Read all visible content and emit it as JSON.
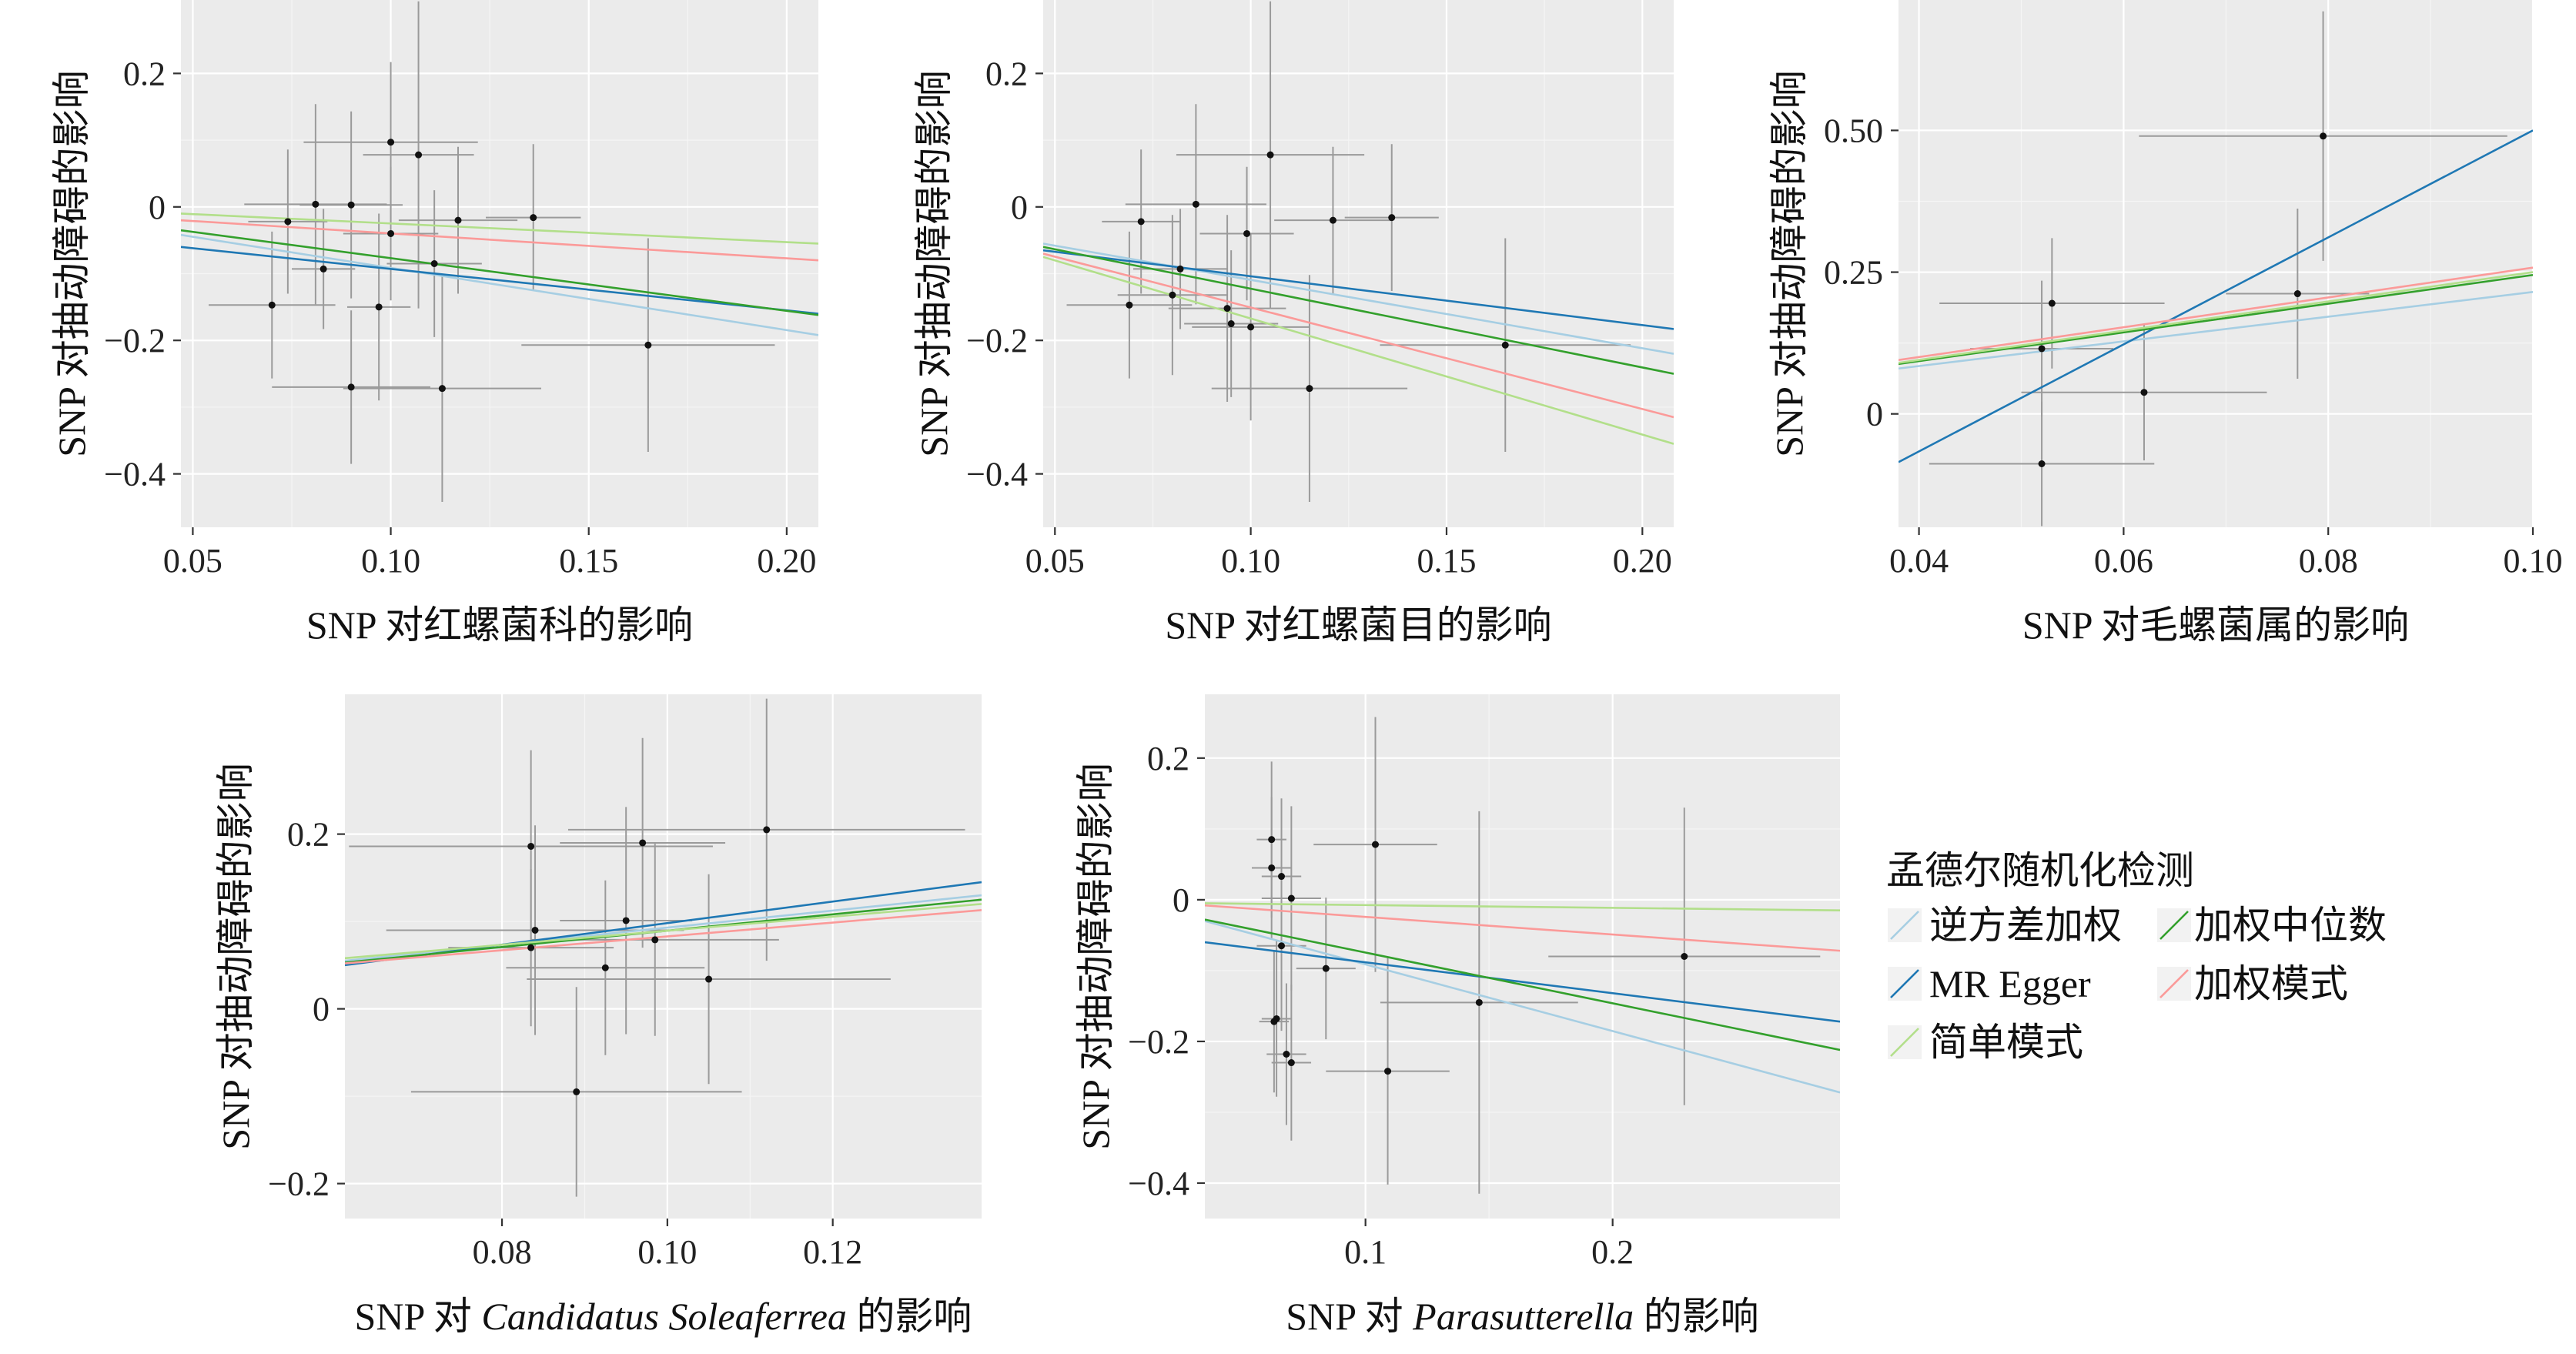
{
  "figure": {
    "legend": {
      "title": "孟德尔随机化检测",
      "items": [
        {
          "key": "ivw",
          "label": "逆方差加权",
          "color": "#a6cee3"
        },
        {
          "key": "wmed",
          "label": "加权中位数",
          "color": "#33a02c"
        },
        {
          "key": "egger",
          "label": "MR Egger",
          "color": "#1f78b4"
        },
        {
          "key": "wmode",
          "label": "加权模式",
          "color": "#fb9a99"
        },
        {
          "key": "smode",
          "label": "简单模式",
          "color": "#b2df8a"
        }
      ]
    }
  },
  "chart_data": [
    {
      "type": "scatter",
      "xlabel": [
        {
          "t": "SNP 对红螺菌科的影响"
        }
      ],
      "ylabel": "SNP 对抽动障碍的影响",
      "xlim": [
        0.047,
        0.208
      ],
      "ylim": [
        -0.48,
        0.31
      ],
      "xticks": [
        {
          "v": 0.05,
          "label": "0.05"
        },
        {
          "v": 0.1,
          "label": "0.10"
        },
        {
          "v": 0.15,
          "label": "0.15"
        },
        {
          "v": 0.2,
          "label": "0.20"
        }
      ],
      "yticks": [
        {
          "v": 0.2,
          "label": "0.2"
        },
        {
          "v": 0,
          "label": "0"
        },
        {
          "v": -0.2,
          "label": "−0.2"
        },
        {
          "v": -0.4,
          "label": "−0.4"
        }
      ],
      "points": [
        {
          "x": 0.07,
          "y": -0.147,
          "xe": 0.016,
          "ye": 0.11
        },
        {
          "x": 0.074,
          "y": -0.022,
          "xe": 0.01,
          "ye": 0.108
        },
        {
          "x": 0.081,
          "y": 0.004,
          "xe": 0.018,
          "ye": 0.15
        },
        {
          "x": 0.083,
          "y": -0.093,
          "xe": 0.008,
          "ye": 0.09
        },
        {
          "x": 0.09,
          "y": 0.003,
          "xe": 0.013,
          "ye": 0.14
        },
        {
          "x": 0.09,
          "y": -0.27,
          "xe": 0.02,
          "ye": 0.115
        },
        {
          "x": 0.097,
          "y": -0.15,
          "xe": 0.008,
          "ye": 0.14
        },
        {
          "x": 0.1,
          "y": 0.097,
          "xe": 0.022,
          "ye": 0.12
        },
        {
          "x": 0.1,
          "y": -0.04,
          "xe": 0.012,
          "ye": 0.1
        },
        {
          "x": 0.107,
          "y": 0.078,
          "xe": 0.014,
          "ye": 0.23
        },
        {
          "x": 0.111,
          "y": -0.085,
          "xe": 0.012,
          "ye": 0.11
        },
        {
          "x": 0.113,
          "y": -0.272,
          "xe": 0.025,
          "ye": 0.17
        },
        {
          "x": 0.117,
          "y": -0.02,
          "xe": 0.015,
          "ye": 0.11
        },
        {
          "x": 0.136,
          "y": -0.016,
          "xe": 0.012,
          "ye": 0.11
        },
        {
          "x": 0.165,
          "y": -0.207,
          "xe": 0.032,
          "ye": 0.16
        }
      ],
      "lines": [
        {
          "key": "ivw",
          "y0": -0.042,
          "y1": -0.192
        },
        {
          "key": "egger",
          "y0": -0.06,
          "y1": -0.16
        },
        {
          "key": "wmed",
          "y0": -0.035,
          "y1": -0.162
        },
        {
          "key": "wmode",
          "y0": -0.02,
          "y1": -0.08
        },
        {
          "key": "smode",
          "y0": -0.01,
          "y1": -0.055
        }
      ]
    },
    {
      "type": "scatter",
      "xlabel": [
        {
          "t": "SNP 对红螺菌目的影响"
        }
      ],
      "ylabel": "SNP 对抽动障碍的影响",
      "xlim": [
        0.047,
        0.208
      ],
      "ylim": [
        -0.48,
        0.31
      ],
      "xticks": [
        {
          "v": 0.05,
          "label": "0.05"
        },
        {
          "v": 0.1,
          "label": "0.10"
        },
        {
          "v": 0.15,
          "label": "0.15"
        },
        {
          "v": 0.2,
          "label": "0.20"
        }
      ],
      "yticks": [
        {
          "v": 0.2,
          "label": "0.2"
        },
        {
          "v": 0,
          "label": "0"
        },
        {
          "v": -0.2,
          "label": "−0.2"
        },
        {
          "v": -0.4,
          "label": "−0.4"
        }
      ],
      "points": [
        {
          "x": 0.069,
          "y": -0.147,
          "xe": 0.016,
          "ye": 0.11
        },
        {
          "x": 0.072,
          "y": -0.022,
          "xe": 0.01,
          "ye": 0.108
        },
        {
          "x": 0.08,
          "y": -0.132,
          "xe": 0.014,
          "ye": 0.12
        },
        {
          "x": 0.082,
          "y": -0.093,
          "xe": 0.012,
          "ye": 0.09
        },
        {
          "x": 0.086,
          "y": 0.004,
          "xe": 0.018,
          "ye": 0.15
        },
        {
          "x": 0.094,
          "y": -0.152,
          "xe": 0.015,
          "ye": 0.14
        },
        {
          "x": 0.095,
          "y": -0.175,
          "xe": 0.012,
          "ye": 0.11
        },
        {
          "x": 0.099,
          "y": -0.04,
          "xe": 0.012,
          "ye": 0.1
        },
        {
          "x": 0.1,
          "y": -0.18,
          "xe": 0.015,
          "ye": 0.14
        },
        {
          "x": 0.105,
          "y": 0.078,
          "xe": 0.024,
          "ye": 0.23
        },
        {
          "x": 0.115,
          "y": -0.272,
          "xe": 0.025,
          "ye": 0.17
        },
        {
          "x": 0.121,
          "y": -0.02,
          "xe": 0.015,
          "ye": 0.11
        },
        {
          "x": 0.136,
          "y": -0.016,
          "xe": 0.012,
          "ye": 0.11
        },
        {
          "x": 0.165,
          "y": -0.207,
          "xe": 0.032,
          "ye": 0.16
        }
      ],
      "lines": [
        {
          "key": "ivw",
          "y0": -0.055,
          "y1": -0.22
        },
        {
          "key": "egger",
          "y0": -0.065,
          "y1": -0.183
        },
        {
          "key": "wmed",
          "y0": -0.06,
          "y1": -0.25
        },
        {
          "key": "wmode",
          "y0": -0.07,
          "y1": -0.315
        },
        {
          "key": "smode",
          "y0": -0.075,
          "y1": -0.355
        }
      ]
    },
    {
      "type": "scatter",
      "xlabel": [
        {
          "t": "SNP 对毛螺菌属的影响"
        }
      ],
      "ylabel": "SNP 对抽动障碍的影响",
      "xlim": [
        0.038,
        0.1
      ],
      "ylim": [
        -0.2,
        0.73
      ],
      "xticks": [
        {
          "v": 0.04,
          "label": "0.04"
        },
        {
          "v": 0.06,
          "label": "0.06"
        },
        {
          "v": 0.08,
          "label": "0.08"
        },
        {
          "v": 0.1,
          "label": "0.10"
        }
      ],
      "yticks": [
        {
          "v": 0.5,
          "label": "0.50"
        },
        {
          "v": 0.25,
          "label": "0.25"
        },
        {
          "v": 0,
          "label": "0"
        }
      ],
      "points": [
        {
          "x": 0.052,
          "y": -0.088,
          "xe": 0.011,
          "ye": 0.11
        },
        {
          "x": 0.052,
          "y": 0.115,
          "xe": 0.007,
          "ye": 0.12
        },
        {
          "x": 0.053,
          "y": 0.195,
          "xe": 0.011,
          "ye": 0.115
        },
        {
          "x": 0.062,
          "y": 0.038,
          "xe": 0.012,
          "ye": 0.12
        },
        {
          "x": 0.077,
          "y": 0.212,
          "xe": 0.007,
          "ye": 0.15
        },
        {
          "x": 0.0795,
          "y": 0.49,
          "xe": 0.018,
          "ye": 0.22
        }
      ],
      "lines": [
        {
          "key": "ivw",
          "y0": 0.08,
          "y1": 0.215
        },
        {
          "key": "egger",
          "y0": -0.085,
          "y1": 0.5
        },
        {
          "key": "wmed",
          "y0": 0.088,
          "y1": 0.245
        },
        {
          "key": "wmode",
          "y0": 0.095,
          "y1": 0.258
        },
        {
          "key": "smode",
          "y0": 0.09,
          "y1": 0.25
        }
      ]
    },
    {
      "type": "scatter",
      "xlabel": [
        {
          "t": "SNP 对 "
        },
        {
          "t": "Candidatus Soleaferrea",
          "i": true
        },
        {
          "t": " 的影响"
        }
      ],
      "ylabel": "SNP 对抽动障碍的影响",
      "xlim": [
        0.061,
        0.138
      ],
      "ylim": [
        -0.24,
        0.36
      ],
      "xticks": [
        {
          "v": 0.08,
          "label": "0.08"
        },
        {
          "v": 0.1,
          "label": "0.10"
        },
        {
          "v": 0.12,
          "label": "0.12"
        }
      ],
      "yticks": [
        {
          "v": 0.2,
          "label": "0.2"
        },
        {
          "v": 0,
          "label": "0"
        },
        {
          "v": -0.2,
          "label": "−0.2"
        }
      ],
      "points": [
        {
          "x": 0.0835,
          "y": 0.186,
          "xe": 0.022,
          "ye": 0.11
        },
        {
          "x": 0.084,
          "y": 0.09,
          "xe": 0.018,
          "ye": 0.12
        },
        {
          "x": 0.0835,
          "y": 0.07,
          "xe": 0.01,
          "ye": 0.09
        },
        {
          "x": 0.089,
          "y": -0.095,
          "xe": 0.02,
          "ye": 0.12
        },
        {
          "x": 0.0925,
          "y": 0.047,
          "xe": 0.012,
          "ye": 0.1
        },
        {
          "x": 0.095,
          "y": 0.101,
          "xe": 0.008,
          "ye": 0.13
        },
        {
          "x": 0.097,
          "y": 0.19,
          "xe": 0.01,
          "ye": 0.12
        },
        {
          "x": 0.0985,
          "y": 0.079,
          "xe": 0.015,
          "ye": 0.11
        },
        {
          "x": 0.105,
          "y": 0.034,
          "xe": 0.022,
          "ye": 0.12
        },
        {
          "x": 0.112,
          "y": 0.205,
          "xe": 0.024,
          "ye": 0.15
        }
      ],
      "lines": [
        {
          "key": "ivw",
          "y0": 0.055,
          "y1": 0.13
        },
        {
          "key": "egger",
          "y0": 0.05,
          "y1": 0.145
        },
        {
          "key": "wmed",
          "y0": 0.053,
          "y1": 0.125
        },
        {
          "key": "wmode",
          "y0": 0.052,
          "y1": 0.113
        },
        {
          "key": "smode",
          "y0": 0.058,
          "y1": 0.12
        }
      ]
    },
    {
      "type": "scatter",
      "xlabel": [
        {
          "t": "SNP 对 "
        },
        {
          "t": "Parasutterella",
          "i": true
        },
        {
          "t": " 的影响"
        }
      ],
      "ylabel": "SNP 对抽动障碍的影响",
      "xlim": [
        0.035,
        0.292
      ],
      "ylim": [
        -0.45,
        0.29
      ],
      "xticks": [
        {
          "v": 0.1,
          "label": "0.1"
        },
        {
          "v": 0.2,
          "label": "0.2"
        }
      ],
      "yticks": [
        {
          "v": 0.2,
          "label": "0.2"
        },
        {
          "v": 0,
          "label": "0"
        },
        {
          "v": -0.2,
          "label": "−0.2"
        },
        {
          "v": -0.4,
          "label": "−0.4"
        }
      ],
      "points": [
        {
          "x": 0.062,
          "y": 0.085,
          "xe": 0.006,
          "ye": 0.11
        },
        {
          "x": 0.062,
          "y": 0.045,
          "xe": 0.008,
          "ye": 0.1
        },
        {
          "x": 0.066,
          "y": 0.033,
          "xe": 0.008,
          "ye": 0.11
        },
        {
          "x": 0.07,
          "y": 0.002,
          "xe": 0.012,
          "ye": 0.13
        },
        {
          "x": 0.066,
          "y": -0.065,
          "xe": 0.01,
          "ye": 0.12
        },
        {
          "x": 0.064,
          "y": -0.168,
          "xe": 0.006,
          "ye": 0.11
        },
        {
          "x": 0.063,
          "y": -0.172,
          "xe": 0.006,
          "ye": 0.1
        },
        {
          "x": 0.068,
          "y": -0.218,
          "xe": 0.008,
          "ye": 0.1
        },
        {
          "x": 0.07,
          "y": -0.23,
          "xe": 0.008,
          "ye": 0.11
        },
        {
          "x": 0.084,
          "y": -0.097,
          "xe": 0.012,
          "ye": 0.1
        },
        {
          "x": 0.104,
          "y": 0.078,
          "xe": 0.025,
          "ye": 0.18
        },
        {
          "x": 0.109,
          "y": -0.242,
          "xe": 0.025,
          "ye": 0.16
        },
        {
          "x": 0.146,
          "y": -0.145,
          "xe": 0.04,
          "ye": 0.27
        },
        {
          "x": 0.229,
          "y": -0.08,
          "xe": 0.055,
          "ye": 0.21
        }
      ],
      "lines": [
        {
          "key": "ivw",
          "y0": -0.03,
          "y1": -0.272
        },
        {
          "key": "egger",
          "y0": -0.06,
          "y1": -0.172
        },
        {
          "key": "wmed",
          "y0": -0.028,
          "y1": -0.212
        },
        {
          "key": "wmode",
          "y0": -0.008,
          "y1": -0.072
        },
        {
          "key": "smode",
          "y0": -0.005,
          "y1": -0.015
        }
      ]
    }
  ]
}
